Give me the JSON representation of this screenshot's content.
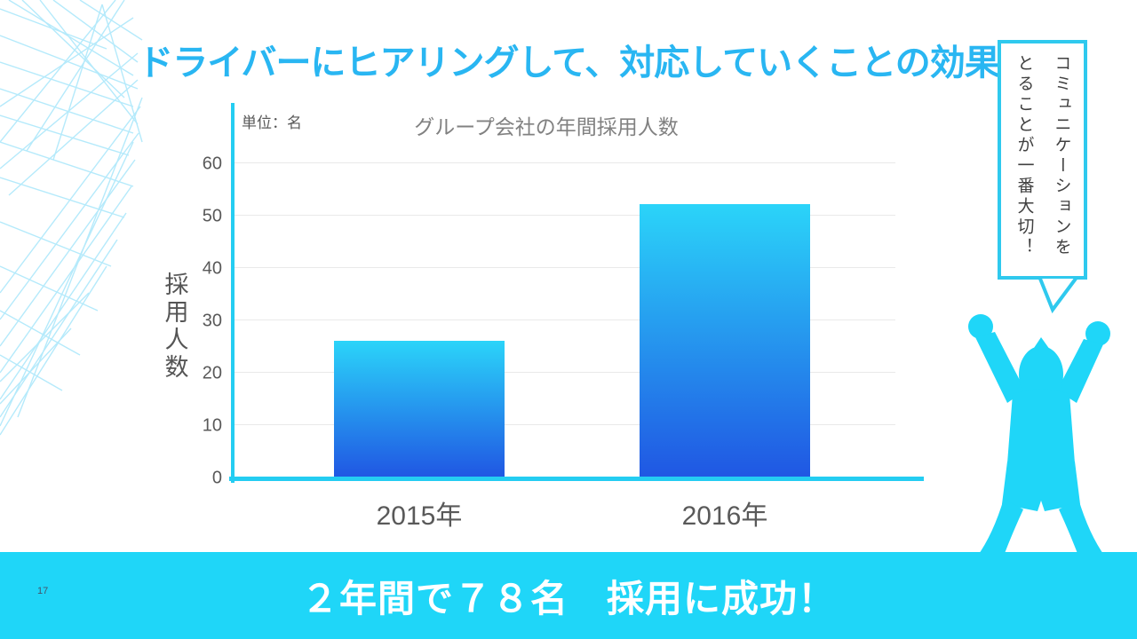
{
  "slide": {
    "title": "ドライバーにヒアリングして、対応していくことの効果",
    "page_number": "17",
    "banner": {
      "text": "２年間で７８名　採用に成功！"
    },
    "speech_bubble": {
      "lines": [
        "コミュニケーションを",
        "とることが一番大切！"
      ]
    }
  },
  "chart_data": {
    "type": "bar",
    "title": "グループ会社の年間採用人数",
    "unit_label": "単位：名",
    "ylabel": "採用人数",
    "xlabel": "",
    "categories": [
      "2015年",
      "2016年"
    ],
    "values": [
      26,
      52
    ],
    "ylim": [
      0,
      60
    ],
    "yticks": [
      0,
      10,
      20,
      30,
      40,
      50,
      60
    ],
    "grid": true,
    "legend": "none"
  },
  "colors": {
    "title_text": "#29b6f2",
    "axis": "#24cdf2",
    "bar_gradient_top": "#2bd4f9",
    "bar_gradient_bottom": "#2057e3",
    "grid_line": "#e9e9e9",
    "banner_bg": "#1fd6f8",
    "banner_text": "#ffffff",
    "silhouette": "#1fd6f8",
    "bubble_border": "#2fc9ee",
    "page_number_text": "#44546a",
    "decoration_line": "#b5eafb"
  }
}
